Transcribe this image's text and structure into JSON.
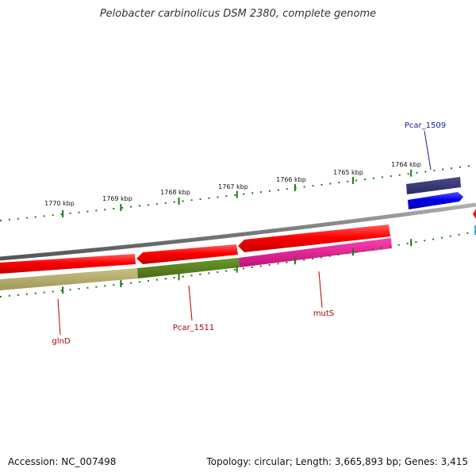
{
  "title": "Pelobacter carbinolicus DSM 2380, complete genome",
  "footer": {
    "accession": "Accession: NC_007498",
    "summary": "Topology: circular; Length: 3,665,893 bp; Genes: 3,415"
  },
  "ticks": [
    {
      "label": "1764 kbp"
    },
    {
      "label": "1765 kbp"
    },
    {
      "label": "1766 kbp"
    },
    {
      "label": "1767 kbp"
    },
    {
      "label": "1768 kbp"
    },
    {
      "label": "1769 kbp"
    },
    {
      "label": "1770 kbp"
    }
  ],
  "gene_labels": [
    {
      "name": "Pcar_1509",
      "color": "#1a1aa0"
    },
    {
      "name": "mutS",
      "color": "#b00000"
    },
    {
      "name": "Pcar_1511",
      "color": "#b00000"
    },
    {
      "name": "glnD",
      "color": "#b00000"
    }
  ],
  "colors": {
    "backbone": "#8a8a8a",
    "cds_red": "#ee1111",
    "cds_blue": "#0a0aee",
    "olive": "#b8b070",
    "olive_dark": "#5a8020",
    "magenta": "#e8209a",
    "navy": "#2a2a70",
    "tick": "#1a7a1a"
  }
}
